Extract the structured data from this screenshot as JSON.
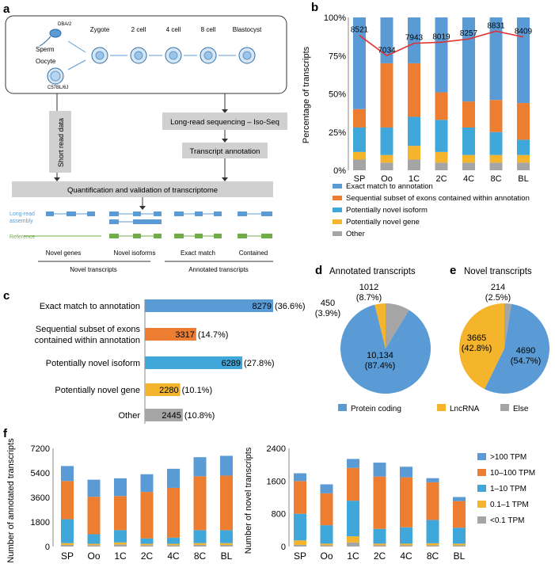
{
  "panel_labels": {
    "a": "a",
    "b": "b",
    "c": "c",
    "d": "d",
    "e": "e",
    "f": "f"
  },
  "colors": {
    "blue_dark": "#5b9bd5",
    "orange": "#ed7d31",
    "blue_light": "#3fa7d9",
    "yellow": "#f4b42c",
    "gray": "#a5a5a5",
    "green": "#70ad47",
    "red": "#e03030",
    "box": "#d0d0d0"
  },
  "panel_a": {
    "sperm": "Sperm",
    "sperm_strain": "DBA/2",
    "oocyte": "Oocyte",
    "oocyte_strain": "C57BL/6J",
    "stages": [
      "Zygote",
      "2 cell",
      "4 cell",
      "8 cell",
      "Blastocyst"
    ],
    "short_read": "Short read data",
    "long_read": "Long-read sequencing – Iso-Seq",
    "annotation": "Transcript annotation",
    "quant": "Quantification and validation of transcriptome",
    "track_long": "Long-read\nassembly",
    "track_ref": "Reference",
    "categories": [
      "Novel genes",
      "Novel isoforms",
      "Exact match",
      "Contained"
    ],
    "groups": [
      "Novel transcripts",
      "Annotated transcripts"
    ]
  },
  "chart_data": [
    {
      "id": "b",
      "type": "bar",
      "stacked": true,
      "categories": [
        "SP",
        "Oo",
        "1C",
        "2C",
        "4C",
        "8C",
        "BL"
      ],
      "ylabel": "Percentage of transcripts",
      "yticks": [
        "0%",
        "25%",
        "50%",
        "75%",
        "100%"
      ],
      "ylim": [
        0,
        100
      ],
      "series": [
        {
          "name": "Other",
          "color": "#a5a5a5",
          "values": [
            7,
            5,
            7,
            5,
            5,
            5,
            5
          ]
        },
        {
          "name": "Potentially novel gene",
          "color": "#f4b42c",
          "values": [
            5,
            5,
            9,
            7,
            5,
            5,
            5
          ]
        },
        {
          "name": "Potentially novel isoform",
          "color": "#3fa7d9",
          "values": [
            16,
            18,
            19,
            21,
            18,
            15,
            10
          ]
        },
        {
          "name": "Sequential subset of exons contained within annotation",
          "color": "#ed7d31",
          "values": [
            12,
            42,
            35,
            18,
            17,
            21,
            24
          ]
        },
        {
          "name": "Exact match to annotation",
          "color": "#5b9bd5",
          "values": [
            60,
            30,
            30,
            49,
            55,
            54,
            56
          ]
        }
      ],
      "line": {
        "name": "Number of transcripts",
        "color": "#e03030",
        "values": [
          8521,
          7034,
          7943,
          8019,
          8257,
          8831,
          8409
        ],
        "labels": [
          "8521",
          "7034",
          "7943",
          "8019",
          "8257",
          "8831",
          "8409"
        ]
      },
      "legend": [
        "Exact match to annotation",
        "Sequential subset of exons contained within annotation",
        "Potentially novel isoform",
        "Potentially novel gene",
        "Other"
      ]
    },
    {
      "id": "c",
      "type": "bar",
      "orientation": "horizontal",
      "categories": [
        "Exact match to annotation",
        "Sequential subset of exons\ncontained within annotation",
        "Potentially novel isoform",
        "Potentially novel gene",
        "Other"
      ],
      "values": [
        8279,
        3317,
        6289,
        2280,
        2445
      ],
      "value_labels": [
        "8279",
        "3317",
        "6289",
        "2280",
        "2445"
      ],
      "pct_labels": [
        "(36.6%)",
        "(14.7%)",
        "(27.8%)",
        "(10.1%)",
        "(10.8%)"
      ],
      "colors": [
        "#5b9bd5",
        "#ed7d31",
        "#3fa7d9",
        "#f4b42c",
        "#a5a5a5"
      ]
    },
    {
      "id": "d",
      "type": "pie",
      "title": "Annotated transcripts",
      "values": [
        10134,
        450,
        1012
      ],
      "labels": [
        "10,134\n(87.4%)",
        "450\n(3.9%)",
        "1012\n(8.7%)"
      ],
      "colors": [
        "#5b9bd5",
        "#f4b42c",
        "#a5a5a5"
      ]
    },
    {
      "id": "e",
      "type": "pie",
      "title": "Novel transcripts",
      "values": [
        4690,
        3665,
        214
      ],
      "labels": [
        "4690\n(54.7%)",
        "3665\n(42.8%)",
        "214\n(2.5%)"
      ],
      "colors": [
        "#5b9bd5",
        "#f4b42c",
        "#a5a5a5"
      ]
    },
    {
      "id": "f1",
      "type": "bar",
      "stacked": true,
      "categories": [
        "SP",
        "Oo",
        "1C",
        "2C",
        "4C",
        "8C",
        "BL"
      ],
      "ylabel": "Number of  annotated transcripts",
      "ylim": [
        0,
        7200
      ],
      "yticks": [
        "0",
        "1800",
        "3600",
        "5400",
        "7200"
      ],
      "series": [
        {
          "name": "<0.1 TPM",
          "values": [
            120,
            100,
            150,
            100,
            100,
            120,
            120
          ]
        },
        {
          "name": "0.1–1 TPM",
          "values": [
            130,
            100,
            150,
            100,
            100,
            130,
            130
          ]
        },
        {
          "name": "1–10 TPM",
          "values": [
            1750,
            700,
            900,
            400,
            450,
            950,
            950
          ]
        },
        {
          "name": "10–100 TPM",
          "values": [
            2800,
            2750,
            2500,
            3400,
            3650,
            3950,
            4000
          ]
        },
        {
          "name": ">100 TPM",
          "values": [
            1100,
            1250,
            1300,
            1300,
            1400,
            1400,
            1450
          ]
        }
      ]
    },
    {
      "id": "f2",
      "type": "bar",
      "stacked": true,
      "categories": [
        "SP",
        "Oo",
        "1C",
        "2C",
        "4C",
        "8C",
        "BL"
      ],
      "ylabel": "Number of  novel transcripts",
      "ylim": [
        0,
        2400
      ],
      "yticks": [
        "0",
        "800",
        "1600",
        "2400"
      ],
      "series": [
        {
          "name": "<0.1 TPM",
          "values": [
            40,
            30,
            100,
            30,
            30,
            30,
            30
          ]
        },
        {
          "name": "0.1–1 TPM",
          "values": [
            110,
            40,
            150,
            40,
            40,
            50,
            40
          ]
        },
        {
          "name": "1–10 TPM",
          "values": [
            650,
            450,
            870,
            360,
            400,
            570,
            390
          ]
        },
        {
          "name": "10–100 TPM",
          "values": [
            800,
            780,
            800,
            1280,
            1220,
            920,
            650
          ]
        },
        {
          "name": ">100 TPM",
          "values": [
            190,
            220,
            220,
            340,
            260,
            100,
            100
          ]
        }
      ],
      "legend": [
        ">100 TPM",
        "10–100 TPM",
        "1–10 TPM",
        "0.1–1 TPM",
        "<0.1 TPM"
      ]
    }
  ],
  "pie_legend": [
    "Protein coding",
    "LncRNA",
    "Else"
  ]
}
